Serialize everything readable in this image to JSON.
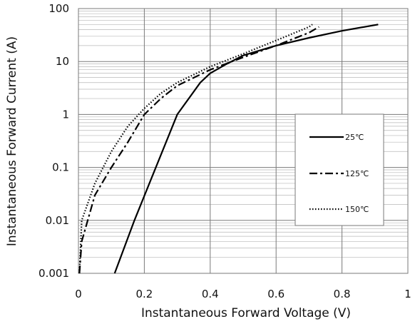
{
  "chart_data": {
    "type": "line",
    "title": "",
    "xlabel": "Instantaneous Forward Voltage (V)",
    "ylabel": "Instantaneous Forward Current (A)",
    "xlim": [
      0,
      1
    ],
    "ylim": [
      0.001,
      100
    ],
    "yscale": "log",
    "grid": true,
    "legend_position": "right",
    "x_ticks": [
      "0",
      "0.2",
      "0.4",
      "0.6",
      "0.8",
      "1"
    ],
    "y_ticks": [
      "0.001",
      "0.01",
      "0.1",
      "1",
      "10",
      "100"
    ],
    "series": [
      {
        "name": "25℃",
        "style": "solid",
        "color": "#000000",
        "x": [
          0.11,
          0.17,
          0.3,
          0.37,
          0.4,
          0.45,
          0.5,
          0.6,
          0.7,
          0.8,
          0.91
        ],
        "y": [
          0.001,
          0.01,
          1,
          4,
          6,
          9,
          13,
          20,
          28,
          38,
          50
        ]
      },
      {
        "name": "125℃",
        "style": "dashdot",
        "color": "#000000",
        "x": [
          0.003,
          0.01,
          0.05,
          0.1,
          0.15,
          0.2,
          0.25,
          0.3,
          0.4,
          0.5,
          0.6,
          0.7,
          0.73
        ],
        "y": [
          0.001,
          0.004,
          0.03,
          0.1,
          0.3,
          1,
          2,
          3.5,
          7,
          12,
          20,
          35,
          45
        ]
      },
      {
        "name": "150℃",
        "style": "dotted",
        "color": "#000000",
        "x": [
          0.003,
          0.01,
          0.05,
          0.1,
          0.15,
          0.2,
          0.25,
          0.3,
          0.4,
          0.5,
          0.6,
          0.7,
          0.71
        ],
        "y": [
          0.001,
          0.01,
          0.05,
          0.2,
          0.6,
          1.3,
          2.5,
          4,
          8,
          14,
          25,
          45,
          50
        ]
      }
    ]
  }
}
